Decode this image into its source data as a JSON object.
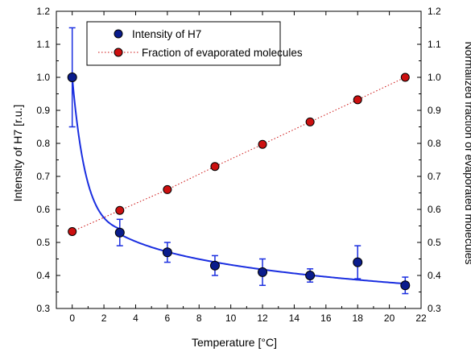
{
  "chart_data": {
    "type": "scatter",
    "title": "",
    "xlabel": "Temperature [°C]",
    "ylabel": "Intensity of H7 [r.u.]",
    "y2label": "Normalized fraction of evaporated molecules",
    "xlim": [
      -1,
      22
    ],
    "ylim": [
      0.3,
      1.2
    ],
    "y2lim": [
      0.3,
      1.2
    ],
    "x_ticks": [
      0,
      2,
      4,
      6,
      8,
      10,
      12,
      14,
      16,
      18,
      20,
      22
    ],
    "y_ticks": [
      0.3,
      0.4,
      0.5,
      0.6,
      0.7,
      0.8,
      0.9,
      1.0,
      1.1,
      1.2
    ],
    "y_tick_labels": [
      "0.3",
      "0.4",
      "0.5",
      "0.6",
      "0.7",
      "0.8",
      "0.9",
      "1.0",
      "1.1",
      "1.2"
    ],
    "legend_position": "top-center",
    "grid": false,
    "series": [
      {
        "name": "Intensity of H7",
        "color": "#0a1c8c",
        "marker": "circle",
        "axis": "left",
        "x": [
          0,
          3,
          6,
          9,
          12,
          15,
          18,
          21
        ],
        "y": [
          1.0,
          0.53,
          0.47,
          0.43,
          0.41,
          0.4,
          0.44,
          0.37
        ],
        "yerr": [
          0.15,
          0.04,
          0.03,
          0.03,
          0.04,
          0.02,
          0.05,
          0.025
        ],
        "fit_color": "#1a2ee0"
      },
      {
        "name": "Fraction of evaporated molecules",
        "color": "#cc1010",
        "marker": "circle",
        "axis": "right",
        "line": "dotted",
        "x": [
          0,
          3,
          6,
          9,
          12,
          15,
          18,
          21
        ],
        "y": [
          0.533,
          0.597,
          0.66,
          0.73,
          0.797,
          0.865,
          0.932,
          1.0
        ]
      }
    ]
  }
}
